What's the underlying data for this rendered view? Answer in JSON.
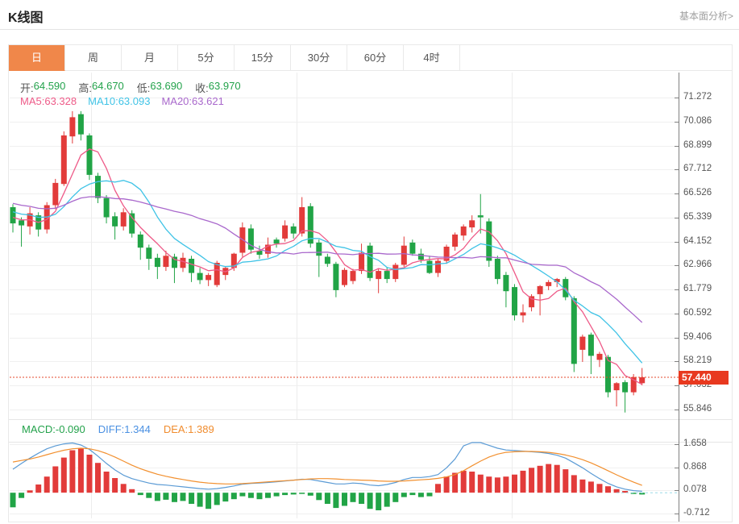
{
  "header": {
    "title": "K线图",
    "link": "基本面分析>"
  },
  "tabs": {
    "active_index": 0,
    "items": [
      "日",
      "周",
      "月",
      "5分",
      "15分",
      "30分",
      "60分",
      "4时"
    ]
  },
  "legend": {
    "ohlc": [
      {
        "label": "开:",
        "value": "64.590"
      },
      {
        "label": "高:",
        "value": "64.670"
      },
      {
        "label": "低:",
        "value": "63.690"
      },
      {
        "label": "收:",
        "value": "63.970"
      }
    ],
    "ohlc_value_color": "#23a24b",
    "ma": [
      {
        "label": "MA5:",
        "value": "63.328",
        "color": "#ee5a88"
      },
      {
        "label": "MA10:",
        "value": "63.093",
        "color": "#3fc3e6"
      },
      {
        "label": "MA20:",
        "value": "63.621",
        "color": "#a968cc"
      }
    ],
    "macd": [
      {
        "label": "MACD:",
        "value": "-0.090",
        "color": "#23a24b"
      },
      {
        "label": "DIFF:",
        "value": "1.344",
        "color": "#4a90e2"
      },
      {
        "label": "DEA:",
        "value": "1.389",
        "color": "#f08c2e"
      }
    ]
  },
  "colors": {
    "up": "#e23b3a",
    "down": "#21a446",
    "ma5": "#ee5a88",
    "ma10": "#3fc3e6",
    "ma20": "#a968cc",
    "diff_line": "#5b9bd5",
    "dea_line": "#f2902f",
    "active_tab_bg": "#f0874a",
    "badge_bg": "#e8391f",
    "price_line": "#e64a2e",
    "macd_zero_dash": "#9adbe8"
  },
  "chart_data": {
    "type": "candlestick",
    "legend_position": "top-left",
    "grid": true,
    "price_axis_labels": [
      "71.272",
      "70.086",
      "68.899",
      "67.712",
      "66.526",
      "65.339",
      "64.152",
      "62.966",
      "61.779",
      "60.592",
      "59.406",
      "58.219",
      "57.032",
      "55.846"
    ],
    "price_axis_range": [
      55.846,
      71.272
    ],
    "macd_axis_labels": [
      "1.658",
      "0.868",
      "0.078",
      "-0.712"
    ],
    "macd_axis_range": [
      -0.712,
      1.658
    ],
    "current_price": "57.440",
    "ma_periods": [
      5,
      10,
      20
    ],
    "candles": [
      [
        65.85,
        66.0,
        64.6,
        65.05
      ],
      [
        65.2,
        65.35,
        63.9,
        64.95
      ],
      [
        64.9,
        65.85,
        64.5,
        65.55
      ],
      [
        65.45,
        65.6,
        64.4,
        64.75
      ],
      [
        64.75,
        66.1,
        64.55,
        65.95
      ],
      [
        65.95,
        67.25,
        65.75,
        67.05
      ],
      [
        67.0,
        69.6,
        66.9,
        69.4
      ],
      [
        69.35,
        70.6,
        69.0,
        70.3
      ],
      [
        70.45,
        70.6,
        69.15,
        69.45
      ],
      [
        69.4,
        69.5,
        67.2,
        67.45
      ],
      [
        67.4,
        67.55,
        66.05,
        66.3
      ],
      [
        66.3,
        66.45,
        65.05,
        65.35
      ],
      [
        65.4,
        65.6,
        64.25,
        64.9
      ],
      [
        64.9,
        65.8,
        64.7,
        65.6
      ],
      [
        65.55,
        65.7,
        64.35,
        64.55
      ],
      [
        64.5,
        64.65,
        63.25,
        63.85
      ],
      [
        63.85,
        64.0,
        62.75,
        63.3
      ],
      [
        63.35,
        63.55,
        62.3,
        62.9
      ],
      [
        62.9,
        63.7,
        62.7,
        63.45
      ],
      [
        63.4,
        63.55,
        62.1,
        62.85
      ],
      [
        62.85,
        63.6,
        62.65,
        63.35
      ],
      [
        63.3,
        63.45,
        62.15,
        62.6
      ],
      [
        62.6,
        62.85,
        62.05,
        62.25
      ],
      [
        62.25,
        62.6,
        61.95,
        62.5
      ],
      [
        62.0,
        63.2,
        61.9,
        63.1
      ],
      [
        62.5,
        62.9,
        62.25,
        62.85
      ],
      [
        62.85,
        63.6,
        62.7,
        63.55
      ],
      [
        63.6,
        65.1,
        63.4,
        64.85
      ],
      [
        64.8,
        65.0,
        63.55,
        63.75
      ],
      [
        63.7,
        63.95,
        63.3,
        63.5
      ],
      [
        63.55,
        64.35,
        63.35,
        64.0
      ],
      [
        64.25,
        64.35,
        63.85,
        64.05
      ],
      [
        64.3,
        65.2,
        64.15,
        64.95
      ],
      [
        64.9,
        65.05,
        64.3,
        64.55
      ],
      [
        64.55,
        66.35,
        64.4,
        65.85
      ],
      [
        65.9,
        66.05,
        63.85,
        64.05
      ],
      [
        64.1,
        64.25,
        62.4,
        63.45
      ],
      [
        63.4,
        63.55,
        62.9,
        63.05
      ],
      [
        63.05,
        63.15,
        61.4,
        61.75
      ],
      [
        62.0,
        62.85,
        61.9,
        62.75
      ],
      [
        62.2,
        62.8,
        62.05,
        62.7
      ],
      [
        62.7,
        64.05,
        62.55,
        63.6
      ],
      [
        63.95,
        64.1,
        62.2,
        62.35
      ],
      [
        62.3,
        62.8,
        61.6,
        62.7
      ],
      [
        62.7,
        62.9,
        62.1,
        62.3
      ],
      [
        62.3,
        63.1,
        62.15,
        63.0
      ],
      [
        63.0,
        64.4,
        62.9,
        63.95
      ],
      [
        64.1,
        64.25,
        63.45,
        63.55
      ],
      [
        63.55,
        63.8,
        63.1,
        63.25
      ],
      [
        63.2,
        63.45,
        62.55,
        62.6
      ],
      [
        62.6,
        63.3,
        62.4,
        63.2
      ],
      [
        63.2,
        64.0,
        63.05,
        63.9
      ],
      [
        63.9,
        64.6,
        63.7,
        64.5
      ],
      [
        64.45,
        65.0,
        64.2,
        64.9
      ],
      [
        64.85,
        65.45,
        64.6,
        65.2
      ],
      [
        65.45,
        66.5,
        64.55,
        65.35
      ],
      [
        65.15,
        65.3,
        62.9,
        63.2
      ],
      [
        63.3,
        63.45,
        62.05,
        62.3
      ],
      [
        62.5,
        62.65,
        60.9,
        61.7
      ],
      [
        61.9,
        62.05,
        60.25,
        60.5
      ],
      [
        60.5,
        61.05,
        60.15,
        60.65
      ],
      [
        60.9,
        61.55,
        60.7,
        61.45
      ],
      [
        61.55,
        62.0,
        60.5,
        61.95
      ],
      [
        61.95,
        62.25,
        61.75,
        62.15
      ],
      [
        62.15,
        62.35,
        61.9,
        62.3
      ],
      [
        62.3,
        62.4,
        61.25,
        61.4
      ],
      [
        61.35,
        61.45,
        57.7,
        58.1
      ],
      [
        58.8,
        59.55,
        58.2,
        59.45
      ],
      [
        59.55,
        59.65,
        57.6,
        58.5
      ],
      [
        58.3,
        58.7,
        57.95,
        58.6
      ],
      [
        58.45,
        58.55,
        56.45,
        56.7
      ],
      [
        56.8,
        57.2,
        56.0,
        57.15
      ],
      [
        57.2,
        57.3,
        55.7,
        56.7
      ],
      [
        56.7,
        57.6,
        56.55,
        57.45
      ],
      [
        57.15,
        57.9,
        57.05,
        57.44
      ]
    ],
    "prehistory_closes": [
      66.9,
      66.8,
      66.7,
      66.6,
      66.5,
      66.45,
      66.4,
      66.35,
      66.3,
      66.25,
      66.2,
      66.1,
      66.0,
      65.9,
      65.8,
      65.7,
      65.6,
      65.5,
      65.4,
      65.2
    ],
    "diff": [
      0.8,
      1.0,
      1.18,
      1.35,
      1.5,
      1.6,
      1.67,
      1.7,
      1.63,
      1.48,
      1.25,
      1.0,
      0.78,
      0.6,
      0.48,
      0.4,
      0.33,
      0.28,
      0.26,
      0.23,
      0.2,
      0.17,
      0.14,
      0.12,
      0.14,
      0.18,
      0.23,
      0.29,
      0.32,
      0.33,
      0.35,
      0.37,
      0.4,
      0.43,
      0.46,
      0.45,
      0.4,
      0.35,
      0.3,
      0.3,
      0.33,
      0.31,
      0.26,
      0.24,
      0.28,
      0.35,
      0.45,
      0.52,
      0.52,
      0.55,
      0.62,
      0.85,
      1.15,
      1.6,
      1.75,
      1.72,
      1.62,
      1.52,
      1.46,
      1.44,
      1.42,
      1.4,
      1.38,
      1.34,
      1.28,
      1.18,
      1.02,
      0.85,
      0.66,
      0.48,
      0.32,
      0.2,
      0.12,
      0.07,
      0.05
    ],
    "dea": [
      1.05,
      1.1,
      1.15,
      1.22,
      1.3,
      1.38,
      1.45,
      1.5,
      1.52,
      1.5,
      1.44,
      1.34,
      1.22,
      1.08,
      0.94,
      0.82,
      0.72,
      0.63,
      0.56,
      0.5,
      0.45,
      0.4,
      0.36,
      0.33,
      0.31,
      0.3,
      0.3,
      0.31,
      0.33,
      0.35,
      0.37,
      0.39,
      0.41,
      0.43,
      0.45,
      0.47,
      0.48,
      0.48,
      0.47,
      0.45,
      0.44,
      0.43,
      0.42,
      0.4,
      0.39,
      0.39,
      0.4,
      0.42,
      0.44,
      0.46,
      0.49,
      0.54,
      0.62,
      0.75,
      0.92,
      1.08,
      1.22,
      1.32,
      1.38,
      1.4,
      1.41,
      1.41,
      1.4,
      1.38,
      1.34,
      1.29,
      1.22,
      1.13,
      1.02,
      0.89,
      0.75,
      0.61,
      0.48,
      0.36,
      0.25
    ],
    "macd_hist": [
      -0.5,
      -0.18,
      0.08,
      0.28,
      0.55,
      0.9,
      1.2,
      1.45,
      1.52,
      1.3,
      1.02,
      0.72,
      0.5,
      0.3,
      0.12,
      -0.08,
      -0.18,
      -0.28,
      -0.24,
      -0.32,
      -0.28,
      -0.38,
      -0.48,
      -0.55,
      -0.42,
      -0.3,
      -0.22,
      -0.12,
      -0.18,
      -0.22,
      -0.18,
      -0.12,
      -0.08,
      -0.06,
      -0.04,
      -0.1,
      -0.25,
      -0.38,
      -0.52,
      -0.45,
      -0.32,
      -0.38,
      -0.55,
      -0.6,
      -0.48,
      -0.32,
      -0.15,
      -0.08,
      -0.15,
      -0.12,
      0.3,
      0.55,
      0.68,
      0.75,
      0.72,
      0.62,
      0.55,
      0.52,
      0.55,
      0.62,
      0.75,
      0.85,
      0.92,
      0.98,
      0.95,
      0.8,
      0.6,
      0.45,
      0.38,
      0.3,
      0.22,
      0.12,
      0.06,
      -0.04,
      -0.06
    ]
  }
}
